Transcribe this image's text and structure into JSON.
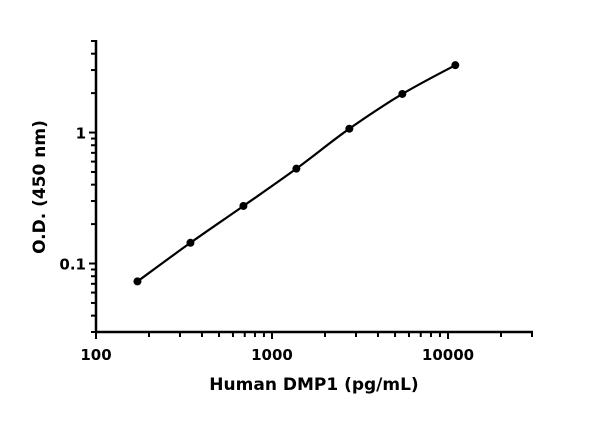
{
  "chart_data": {
    "type": "line",
    "title": "",
    "xlabel": "Human DMP1 (pg/mL)",
    "ylabel": "O.D. (450 nm)",
    "xscale": "log",
    "yscale": "log",
    "xlim": [
      100,
      30000
    ],
    "ylim": [
      0.03,
      5
    ],
    "grid": false,
    "legend": "none",
    "x_ticks": [
      100,
      1000,
      10000
    ],
    "x_tick_labels": [
      "100",
      "1000",
      "10000"
    ],
    "y_ticks": [
      0.1,
      1
    ],
    "y_tick_labels": [
      "0.1",
      "1"
    ],
    "series": [
      {
        "x": [
          172,
          344,
          688,
          1375,
          2750,
          5500,
          11000
        ],
        "y": [
          0.073,
          0.144,
          0.275,
          0.53,
          1.07,
          1.97,
          3.27
        ],
        "color": "#000000",
        "marker": "circle"
      }
    ]
  }
}
